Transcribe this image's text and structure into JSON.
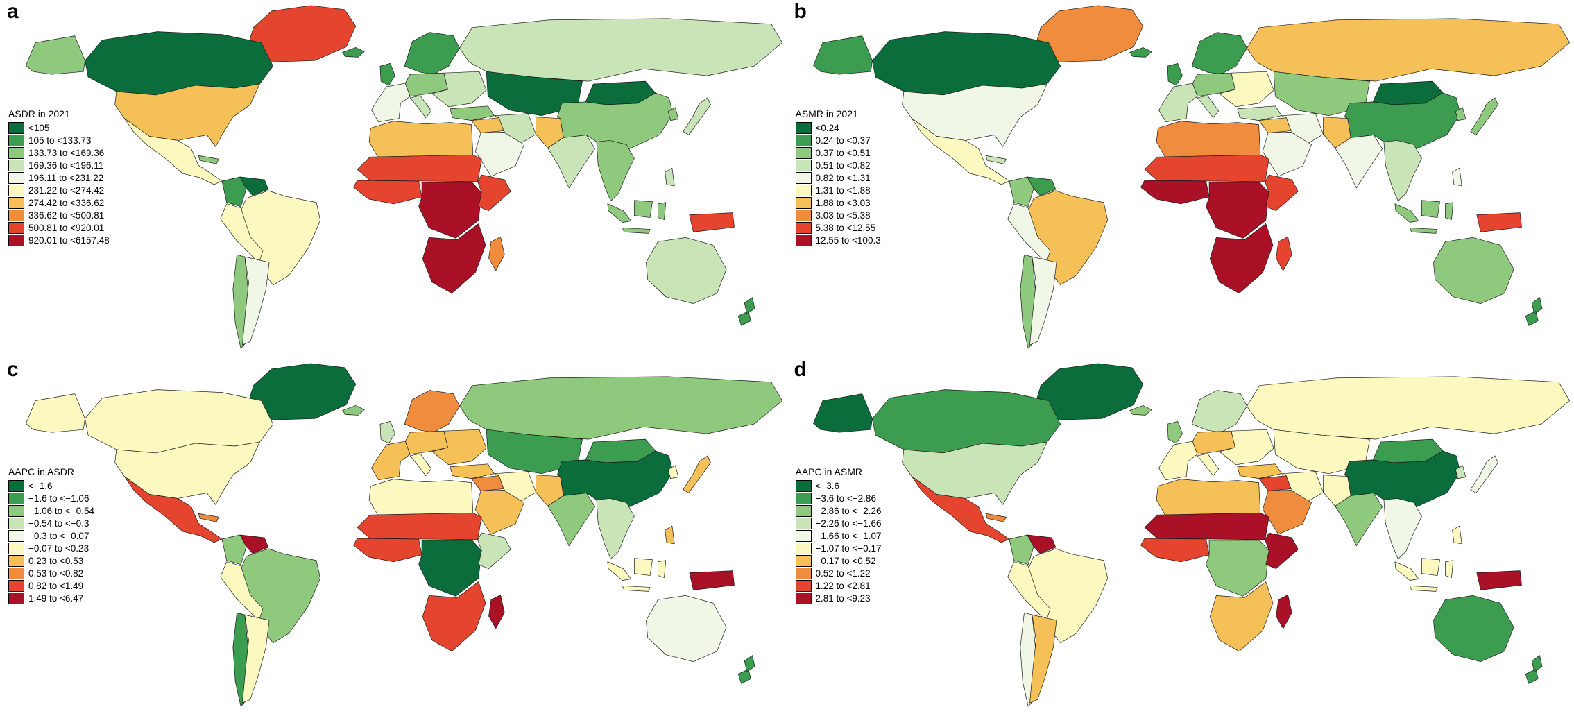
{
  "palette": [
    "#0a6d3b",
    "#3c9c4f",
    "#8fc97d",
    "#c9e5b8",
    "#f1f7e7",
    "#fbf9c0",
    "#f6c059",
    "#f08c3e",
    "#e5452f",
    "#aa1126"
  ],
  "panels": [
    {
      "label": "a",
      "legend_title": "ASDR in 2021",
      "legend_labels": [
        "<105",
        "105 to <133.73",
        "133.73 to <169.36",
        "169.36 to <196.11",
        "196.11 to <231.22",
        "231.22 to <274.42",
        "274.42 to <336.62",
        "336.62 to <500.81",
        "500.81 to <920.01",
        "920.01 to <6157.48"
      ],
      "regions": {
        "greenland": 8,
        "iceland": 1,
        "alaska": 2,
        "canada": 0,
        "usa": 6,
        "mexico": 5,
        "caribbean": 2,
        "colombia": 1,
        "venezuela": 0,
        "brazil": 5,
        "peru": 5,
        "chile": 2,
        "argentina": 4,
        "uk": 1,
        "scandinavia": 1,
        "western_europe": 4,
        "central_europe": 2,
        "italy": 3,
        "eastern_europe": 3,
        "russia": 3,
        "kazakhstan": 0,
        "turkey": 2,
        "levant_iraq": 6,
        "iran": 3,
        "saudi": 4,
        "north_africa": 6,
        "sahel": 8,
        "west_africa": 8,
        "central_africa": 9,
        "east_africa": 8,
        "southern_africa": 9,
        "madagascar": 7,
        "pakistan_afghanistan": 6,
        "india": 3,
        "china": 2,
        "mongolia": 0,
        "korea": 2,
        "japan": 3,
        "southeast_asia": 2,
        "indonesia": 2,
        "philippines": 3,
        "png": 8,
        "australia": 3,
        "new_zealand": 1
      }
    },
    {
      "label": "b",
      "legend_title": "ASMR in 2021",
      "legend_labels": [
        "<0.24",
        "0.24 to <0.37",
        "0.37 to <0.51",
        "0.51 to <0.82",
        "0.82 to <1.31",
        "1.31 to <1.88",
        "1.88 to <3.03",
        "3.03 to <5.38",
        "5.38 to <12.55",
        "12.55 to <100.3"
      ],
      "regions": {
        "greenland": 7,
        "iceland": 1,
        "alaska": 1,
        "canada": 0,
        "usa": 4,
        "mexico": 5,
        "caribbean": 3,
        "colombia": 2,
        "venezuela": 1,
        "brazil": 6,
        "peru": 4,
        "chile": 2,
        "argentina": 4,
        "uk": 1,
        "scandinavia": 1,
        "western_europe": 3,
        "central_europe": 2,
        "italy": 3,
        "eastern_europe": 5,
        "russia": 6,
        "kazakhstan": 2,
        "turkey": 3,
        "levant_iraq": 6,
        "iran": 4,
        "saudi": 4,
        "north_africa": 7,
        "sahel": 8,
        "west_africa": 9,
        "central_africa": 9,
        "east_africa": 8,
        "southern_africa": 9,
        "madagascar": 8,
        "pakistan_afghanistan": 6,
        "india": 4,
        "china": 1,
        "mongolia": 0,
        "korea": 2,
        "japan": 2,
        "southeast_asia": 3,
        "indonesia": 2,
        "philippines": 4,
        "png": 8,
        "australia": 2,
        "new_zealand": 1
      }
    },
    {
      "label": "c",
      "legend_title": "AAPC in ASDR",
      "legend_labels": [
        "<−1.6",
        "−1.6 to <−1.06",
        "−1.06 to <−0.54",
        "−0.54 to <−0.3",
        "−0.3 to <−0.07",
        "−0.07 to <0.23",
        "0.23 to <0.53",
        "0.53 to <0.82",
        "0.82 to <1.49",
        "1.49 to <6.47"
      ],
      "regions": {
        "greenland": 0,
        "iceland": 2,
        "alaska": 5,
        "canada": 5,
        "usa": 5,
        "mexico": 8,
        "caribbean": 7,
        "colombia": 2,
        "venezuela": 9,
        "brazil": 2,
        "peru": 5,
        "chile": 1,
        "argentina": 5,
        "uk": 3,
        "scandinavia": 7,
        "western_europe": 6,
        "central_europe": 6,
        "italy": 5,
        "eastern_europe": 6,
        "russia": 2,
        "kazakhstan": 1,
        "turkey": 6,
        "levant_iraq": 7,
        "iran": 5,
        "saudi": 6,
        "north_africa": 5,
        "sahel": 8,
        "west_africa": 8,
        "central_africa": 0,
        "east_africa": 3,
        "southern_africa": 8,
        "madagascar": 9,
        "pakistan_afghanistan": 6,
        "india": 2,
        "china": 0,
        "mongolia": 1,
        "korea": 5,
        "japan": 6,
        "southeast_asia": 3,
        "indonesia": 5,
        "philippines": 6,
        "png": 9,
        "australia": 4,
        "new_zealand": 1
      }
    },
    {
      "label": "d",
      "legend_title": "AAPC in ASMR",
      "legend_labels": [
        "<−3.6",
        "−3.6 to <−2.86",
        "−2.86 to <−2.26",
        "−2.26 to <−1.66",
        "−1.66 to <−1.07",
        "−1.07 to <−0.17",
        "−0.17 to <0.52",
        "0.52 to <1.22",
        "1.22 to <2.81",
        "2.81 to <9.23"
      ],
      "regions": {
        "greenland": 0,
        "iceland": 2,
        "alaska": 0,
        "canada": 1,
        "usa": 3,
        "mexico": 8,
        "caribbean": 7,
        "colombia": 2,
        "venezuela": 9,
        "brazil": 5,
        "peru": 5,
        "chile": 4,
        "argentina": 6,
        "uk": 2,
        "scandinavia": 3,
        "western_europe": 5,
        "central_europe": 6,
        "italy": 5,
        "eastern_europe": 5,
        "russia": 5,
        "kazakhstan": 5,
        "turkey": 6,
        "levant_iraq": 8,
        "iran": 5,
        "saudi": 7,
        "north_africa": 6,
        "sahel": 9,
        "west_africa": 8,
        "central_africa": 2,
        "east_africa": 9,
        "southern_africa": 6,
        "madagascar": 9,
        "pakistan_afghanistan": 5,
        "india": 2,
        "china": 0,
        "mongolia": 1,
        "korea": 3,
        "japan": 4,
        "southeast_asia": 4,
        "indonesia": 5,
        "philippines": 5,
        "png": 9,
        "australia": 1,
        "new_zealand": 1
      }
    }
  ]
}
